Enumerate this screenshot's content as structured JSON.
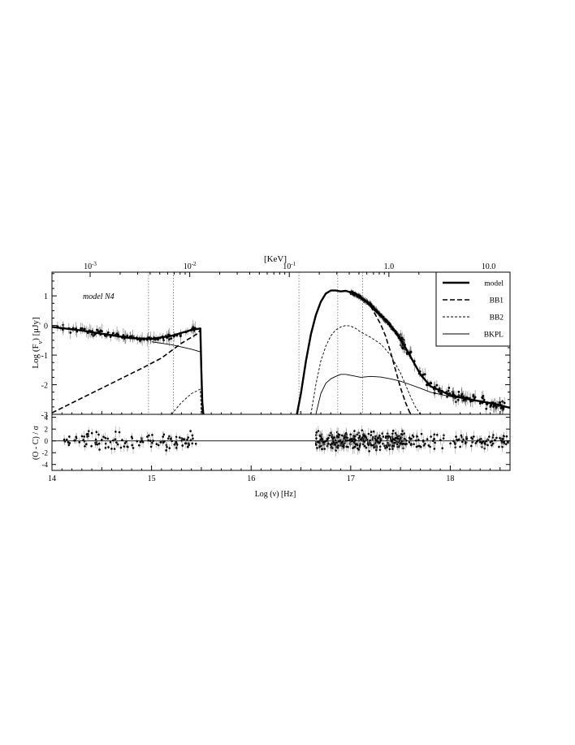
{
  "chart_data": [
    {
      "type": "line",
      "panel": "spectrum",
      "annotation": "model N4",
      "top_axis": {
        "label": "[KeV]",
        "ticks": [
          {
            "value_kev": 0.001,
            "base": "10",
            "exp": "-3"
          },
          {
            "value_kev": 0.01,
            "base": "10",
            "exp": "-2"
          },
          {
            "value_kev": 0.1,
            "base": "10",
            "exp": "-1"
          },
          {
            "value_kev": 1.0,
            "text": "1.0"
          },
          {
            "value_kev": 10.0,
            "text": "10.0"
          }
        ]
      },
      "ylabel": "Log (F_ν) [μJy]",
      "ylabel_parts": {
        "pre": "Log (F",
        "sub": "ν",
        "post": ") [μJy]"
      },
      "xlim": [
        14,
        18.6
      ],
      "ylim": [
        -3,
        1.8
      ],
      "yticks": [
        {
          "value": 1,
          "text": "1"
        },
        {
          "value": 0,
          "text": "0"
        },
        {
          "value": -1,
          "text": "-1"
        },
        {
          "value": -2,
          "text": "-2"
        },
        {
          "value": -3,
          "text": "-3"
        }
      ],
      "legend": {
        "position": "top-right",
        "entries": [
          {
            "name": "model",
            "style": "thick-solid"
          },
          {
            "name": "BB1",
            "style": "thick-dash"
          },
          {
            "name": "BB2",
            "style": "thin-dash"
          },
          {
            "name": "BKPL",
            "style": "thin-solid"
          }
        ]
      },
      "vertical_dotted_lines_x": [
        14.97,
        15.22,
        16.48,
        16.87,
        17.12
      ],
      "series": [
        {
          "name": "model",
          "style": "thick-solid",
          "segments": [
            {
              "x": [
                14.0,
                14.3,
                14.6,
                14.8,
                15.0,
                15.2,
                15.4,
                15.49,
                15.5,
                15.51,
                15.52
              ],
              "y": [
                -0.05,
                -0.17,
                -0.33,
                -0.43,
                -0.45,
                -0.35,
                -0.15,
                -0.1,
                -1.5,
                -2.6,
                -3.0
              ]
            },
            {
              "x": [
                16.46,
                16.5,
                16.55,
                16.6,
                16.65,
                16.7,
                16.75,
                16.8,
                16.85,
                16.9,
                16.95,
                17.0,
                17.05,
                17.1,
                17.15,
                17.2,
                17.3,
                17.4,
                17.5,
                17.6,
                17.7,
                17.8,
                18.0,
                18.2,
                18.4,
                18.6
              ],
              "y": [
                -3.0,
                -2.3,
                -1.2,
                -0.3,
                0.35,
                0.8,
                1.08,
                1.18,
                1.18,
                1.15,
                1.17,
                1.12,
                1.05,
                0.95,
                0.82,
                0.7,
                0.35,
                0.0,
                -0.45,
                -1.05,
                -1.65,
                -2.05,
                -2.35,
                -2.5,
                -2.62,
                -2.78
              ]
            }
          ]
        },
        {
          "name": "BB1",
          "style": "thick-dash",
          "segments": [
            {
              "x": [
                14.0,
                14.3,
                14.6,
                14.9,
                15.1,
                15.3,
                15.45,
                15.49,
                15.5,
                15.51
              ],
              "y": [
                -2.95,
                -2.45,
                -1.95,
                -1.45,
                -1.1,
                -0.6,
                -0.3,
                -0.15,
                -1.5,
                -3.0
              ]
            },
            {
              "x": [
                16.46,
                16.5,
                16.55,
                16.6,
                16.65,
                16.7,
                16.75,
                16.8,
                16.85,
                16.9,
                16.95,
                17.0,
                17.05,
                17.1,
                17.15,
                17.2,
                17.25,
                17.3,
                17.35,
                17.4,
                17.45,
                17.5,
                17.55,
                17.6
              ],
              "y": [
                -3.0,
                -2.3,
                -1.2,
                -0.3,
                0.35,
                0.8,
                1.08,
                1.18,
                1.18,
                1.15,
                1.17,
                1.12,
                1.05,
                0.95,
                0.82,
                0.65,
                0.35,
                0.05,
                -0.35,
                -0.9,
                -1.5,
                -2.1,
                -2.6,
                -3.0
              ]
            }
          ]
        },
        {
          "name": "BB2",
          "style": "thin-dash",
          "segments": [
            {
              "x": [
                15.2,
                15.3,
                15.4,
                15.49,
                15.5
              ],
              "y": [
                -3.0,
                -2.6,
                -2.3,
                -2.15,
                -3.0
              ]
            },
            {
              "x": [
                16.6,
                16.65,
                16.7,
                16.75,
                16.8,
                16.85,
                16.9,
                16.95,
                17.0,
                17.05,
                17.1,
                17.2,
                17.3,
                17.4,
                17.5,
                17.55,
                17.6,
                17.65,
                17.7
              ],
              "y": [
                -3.0,
                -2.0,
                -1.2,
                -0.7,
                -0.35,
                -0.15,
                -0.05,
                0.0,
                -0.02,
                -0.1,
                -0.22,
                -0.4,
                -0.62,
                -1.0,
                -1.6,
                -2.0,
                -2.4,
                -2.75,
                -3.0
              ]
            }
          ]
        },
        {
          "name": "BKPL",
          "style": "thin-solid",
          "segments": [
            {
              "x": [
                15.0,
                15.2,
                15.4,
                15.5
              ],
              "y": [
                -0.55,
                -0.65,
                -0.8,
                -0.9
              ]
            },
            {
              "x": [
                16.65,
                16.7,
                16.75,
                16.8,
                16.85,
                16.9,
                16.95,
                17.0,
                17.1,
                17.2,
                17.3,
                17.4,
                17.5,
                17.6,
                17.7,
                17.8,
                18.0,
                18.2,
                18.4,
                18.6
              ],
              "y": [
                -3.0,
                -2.3,
                -1.95,
                -1.8,
                -1.72,
                -1.65,
                -1.65,
                -1.68,
                -1.75,
                -1.72,
                -1.74,
                -1.8,
                -1.88,
                -2.0,
                -2.12,
                -2.25,
                -2.4,
                -2.5,
                -2.62,
                -2.78
              ]
            }
          ]
        }
      ]
    },
    {
      "type": "scatter",
      "panel": "residuals",
      "ylabel": "(O - C) / σ",
      "xlabel": "Log (ν) [Hz]",
      "xlim": [
        14,
        18.6
      ],
      "ylim": [
        -5,
        4.5
      ],
      "xticks": [
        {
          "value": 14,
          "text": "14"
        },
        {
          "value": 15,
          "text": "15"
        },
        {
          "value": 16,
          "text": "16"
        },
        {
          "value": 17,
          "text": "17"
        },
        {
          "value": 18,
          "text": "18"
        }
      ],
      "yticks": [
        {
          "value": 4,
          "text": "4"
        },
        {
          "value": 2,
          "text": "2"
        },
        {
          "value": 0,
          "text": "0"
        },
        {
          "value": -2,
          "text": "-2"
        },
        {
          "value": -4,
          "text": "-4"
        }
      ],
      "reference_line_y": 0
    }
  ]
}
